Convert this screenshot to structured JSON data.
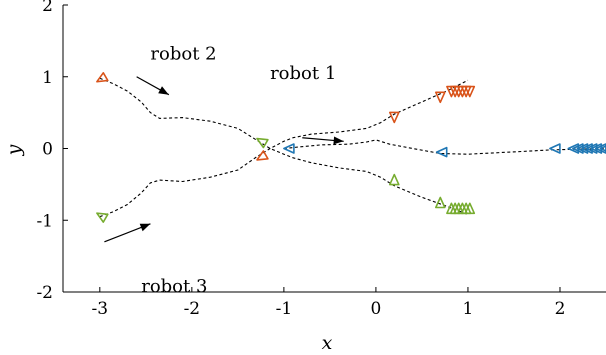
{
  "chart_data": {
    "type": "line",
    "xlabel": "x",
    "ylabel": "y",
    "xlim": [
      -3.4,
      2.5
    ],
    "ylim": [
      -2,
      2
    ],
    "x_ticks": [
      -3,
      -2,
      -1,
      0,
      1,
      2
    ],
    "x_tick_labels": [
      "-3",
      "-2",
      "-1",
      "0",
      "1",
      "2"
    ],
    "y_ticks": [
      -2,
      -1,
      0,
      1,
      2
    ],
    "y_tick_labels": [
      "-2",
      "-1",
      "0",
      "1",
      "2"
    ],
    "colors": {
      "robot1": "#1f77b4",
      "robot2": "#d95319",
      "robot3": "#77ac30",
      "path": "#000000"
    },
    "paths": [
      {
        "id": "path-robot-1",
        "points": [
          [
            -1.0,
            0.0
          ],
          [
            -0.85,
            0.02
          ],
          [
            -0.6,
            0.05
          ],
          [
            -0.3,
            0.06
          ],
          [
            -0.1,
            0.09
          ],
          [
            0.0,
            0.12
          ],
          [
            0.15,
            0.06
          ],
          [
            0.4,
            0.0
          ],
          [
            0.7,
            -0.07
          ],
          [
            1.0,
            -0.08
          ],
          [
            1.3,
            -0.06
          ],
          [
            1.6,
            -0.04
          ],
          [
            1.9,
            -0.02
          ],
          [
            2.2,
            -0.01
          ],
          [
            2.5,
            0.0
          ]
        ]
      },
      {
        "id": "path-robot-2",
        "points": [
          [
            -3.0,
            0.98
          ],
          [
            -2.85,
            0.9
          ],
          [
            -2.7,
            0.8
          ],
          [
            -2.55,
            0.65
          ],
          [
            -2.45,
            0.5
          ],
          [
            -2.35,
            0.42
          ],
          [
            -2.1,
            0.43
          ],
          [
            -1.8,
            0.38
          ],
          [
            -1.5,
            0.28
          ],
          [
            -1.3,
            0.12
          ],
          [
            -1.15,
            0.0
          ],
          [
            -1.0,
            -0.08
          ],
          [
            -0.9,
            -0.13
          ],
          [
            -0.7,
            -0.2
          ],
          [
            -0.4,
            -0.27
          ],
          [
            -0.1,
            -0.32
          ],
          [
            0.05,
            -0.4
          ],
          [
            0.2,
            -0.52
          ],
          [
            0.5,
            -0.68
          ],
          [
            0.8,
            -0.82
          ],
          [
            1.0,
            -0.92
          ]
        ]
      },
      {
        "id": "path-robot-3",
        "points": [
          [
            -3.0,
            -0.95
          ],
          [
            -2.85,
            -0.88
          ],
          [
            -2.7,
            -0.78
          ],
          [
            -2.55,
            -0.62
          ],
          [
            -2.45,
            -0.48
          ],
          [
            -2.35,
            -0.44
          ],
          [
            -2.1,
            -0.46
          ],
          [
            -1.8,
            -0.4
          ],
          [
            -1.5,
            -0.3
          ],
          [
            -1.3,
            -0.12
          ],
          [
            -1.15,
            0.0
          ],
          [
            -1.0,
            0.1
          ],
          [
            -0.9,
            0.15
          ],
          [
            -0.7,
            0.2
          ],
          [
            -0.4,
            0.23
          ],
          [
            -0.1,
            0.28
          ],
          [
            0.05,
            0.36
          ],
          [
            0.2,
            0.48
          ],
          [
            0.5,
            0.65
          ],
          [
            0.8,
            0.82
          ],
          [
            1.0,
            0.95
          ]
        ]
      }
    ],
    "markers": [
      {
        "id": "marker-robot2-start",
        "robot": "robot2",
        "x": -2.98,
        "y": 0.97,
        "dir": 210
      },
      {
        "id": "marker-robot2-mid",
        "robot": "robot2",
        "x": -1.24,
        "y": -0.12,
        "dir": 210
      },
      {
        "id": "marker-robot2-a",
        "robot": "robot2",
        "x": 0.2,
        "y": 0.44,
        "dir": 270
      },
      {
        "id": "marker-robot2-b",
        "robot": "robot2",
        "x": 0.7,
        "y": 0.72,
        "dir": 270
      },
      {
        "id": "marker-robot3-start",
        "robot": "robot3",
        "x": -2.98,
        "y": -0.94,
        "dir": 150
      },
      {
        "id": "marker-robot3-mid",
        "robot": "robot3",
        "x": -1.24,
        "y": 0.1,
        "dir": 150
      },
      {
        "id": "marker-robot3-a",
        "robot": "robot3",
        "x": 0.2,
        "y": -0.44,
        "dir": 90
      },
      {
        "id": "marker-robot3-b",
        "robot": "robot3",
        "x": 0.7,
        "y": -0.76,
        "dir": 90
      },
      {
        "id": "marker-robot1-start",
        "robot": "robot1",
        "x": -0.94,
        "y": 0.0,
        "dir": 180
      },
      {
        "id": "marker-robot1-a",
        "robot": "robot1",
        "x": 0.72,
        "y": -0.05,
        "dir": 180
      },
      {
        "id": "marker-robot1-b",
        "robot": "robot1",
        "x": 1.95,
        "y": 0.0,
        "dir": 180
      }
    ],
    "clusters": [
      {
        "id": "cluster-robot2-end",
        "robot": "robot2",
        "x_start": 0.82,
        "x_end": 1.02,
        "y": 0.8,
        "count": 6,
        "dir": 270
      },
      {
        "id": "cluster-robot3-end",
        "robot": "robot3",
        "x_start": 0.82,
        "x_end": 1.02,
        "y": -0.84,
        "count": 6,
        "dir": 90
      },
      {
        "id": "cluster-robot1-end",
        "robot": "robot1",
        "x_start": 2.15,
        "x_end": 2.5,
        "y": 0.0,
        "count": 8,
        "dir": 180
      }
    ],
    "annotations": [
      {
        "id": "label-robot-2",
        "text": "robot 2",
        "x": -2.45,
        "y": 1.24,
        "arrow_from": [
          -2.6,
          1.0
        ],
        "arrow_to": [
          -2.25,
          0.75
        ]
      },
      {
        "id": "label-robot-1",
        "text": "robot 1",
        "x": -1.15,
        "y": 0.97,
        "arrow_from": [
          -0.8,
          0.15
        ],
        "arrow_to": [
          -0.35,
          0.1
        ]
      },
      {
        "id": "label-robot-3",
        "text": "robot 3",
        "x": -2.55,
        "y": -2.0,
        "arrow_from": [
          -2.95,
          -1.3
        ],
        "arrow_to": [
          -2.45,
          -1.05
        ]
      }
    ]
  }
}
